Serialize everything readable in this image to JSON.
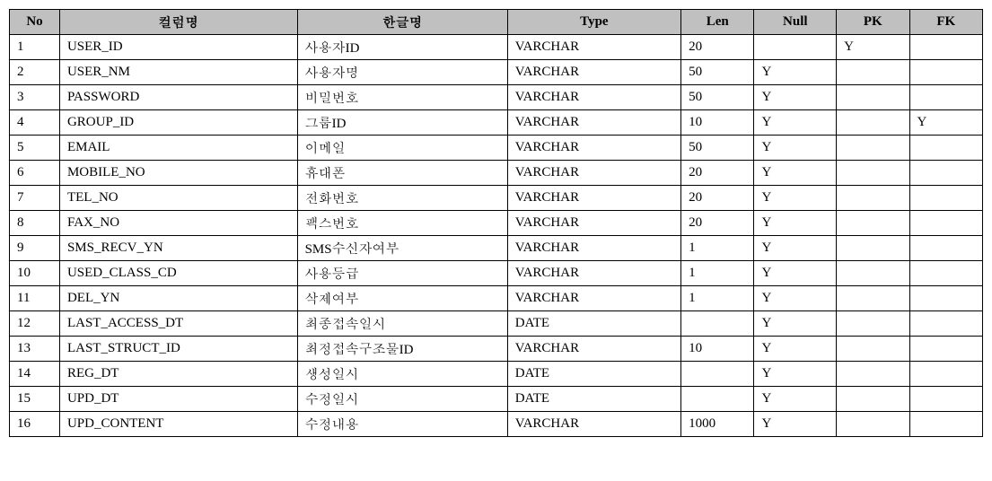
{
  "table": {
    "columns": [
      {
        "key": "no",
        "label": "No",
        "class": "col-no"
      },
      {
        "key": "name",
        "label": "컬럼명",
        "class": "col-name"
      },
      {
        "key": "korean",
        "label": "한글명",
        "class": "col-korean"
      },
      {
        "key": "type",
        "label": "Type",
        "class": "col-type"
      },
      {
        "key": "len",
        "label": "Len",
        "class": "col-len"
      },
      {
        "key": "null",
        "label": "Null",
        "class": "col-null"
      },
      {
        "key": "pk",
        "label": "PK",
        "class": "col-pk"
      },
      {
        "key": "fk",
        "label": "FK",
        "class": "col-fk"
      }
    ],
    "rows": [
      {
        "no": "1",
        "name": "USER_ID",
        "korean": "사용자ID",
        "type": "VARCHAR",
        "len": "20",
        "null": "",
        "pk": "Y",
        "fk": ""
      },
      {
        "no": "2",
        "name": "USER_NM",
        "korean": "사용자명",
        "type": "VARCHAR",
        "len": "50",
        "null": "Y",
        "pk": "",
        "fk": ""
      },
      {
        "no": "3",
        "name": "PASSWORD",
        "korean": "비밀번호",
        "type": "VARCHAR",
        "len": "50",
        "null": "Y",
        "pk": "",
        "fk": ""
      },
      {
        "no": "4",
        "name": "GROUP_ID",
        "korean": "그룹ID",
        "type": "VARCHAR",
        "len": "10",
        "null": "Y",
        "pk": "",
        "fk": "Y"
      },
      {
        "no": "5",
        "name": "EMAIL",
        "korean": "이메일",
        "type": "VARCHAR",
        "len": "50",
        "null": "Y",
        "pk": "",
        "fk": ""
      },
      {
        "no": "6",
        "name": "MOBILE_NO",
        "korean": "휴대폰",
        "type": "VARCHAR",
        "len": "20",
        "null": "Y",
        "pk": "",
        "fk": ""
      },
      {
        "no": "7",
        "name": "TEL_NO",
        "korean": "전화번호",
        "type": "VARCHAR",
        "len": "20",
        "null": "Y",
        "pk": "",
        "fk": ""
      },
      {
        "no": "8",
        "name": "FAX_NO",
        "korean": "팩스번호",
        "type": "VARCHAR",
        "len": "20",
        "null": "Y",
        "pk": "",
        "fk": ""
      },
      {
        "no": "9",
        "name": "SMS_RECV_YN",
        "korean": "SMS수신자여부",
        "type": "VARCHAR",
        "len": "1",
        "null": "Y",
        "pk": "",
        "fk": ""
      },
      {
        "no": "10",
        "name": "USED_CLASS_CD",
        "korean": "사용등급",
        "type": "VARCHAR",
        "len": "1",
        "null": "Y",
        "pk": "",
        "fk": ""
      },
      {
        "no": "11",
        "name": "DEL_YN",
        "korean": "삭제여부",
        "type": "VARCHAR",
        "len": "1",
        "null": "Y",
        "pk": "",
        "fk": ""
      },
      {
        "no": "12",
        "name": "LAST_ACCESS_DT",
        "korean": "최종접속일시",
        "type": "DATE",
        "len": "",
        "null": "Y",
        "pk": "",
        "fk": ""
      },
      {
        "no": "13",
        "name": "LAST_STRUCT_ID",
        "korean": "최정접속구조물ID",
        "type": "VARCHAR",
        "len": "10",
        "null": "Y",
        "pk": "",
        "fk": ""
      },
      {
        "no": "14",
        "name": "REG_DT",
        "korean": "생성일시",
        "type": "DATE",
        "len": "",
        "null": "Y",
        "pk": "",
        "fk": ""
      },
      {
        "no": "15",
        "name": "UPD_DT",
        "korean": "수정일시",
        "type": "DATE",
        "len": "",
        "null": "Y",
        "pk": "",
        "fk": ""
      },
      {
        "no": "16",
        "name": "UPD_CONTENT",
        "korean": "수정내용",
        "type": "VARCHAR",
        "len": "1000",
        "null": "Y",
        "pk": "",
        "fk": ""
      }
    ],
    "header_bg": "#c0c0c0",
    "border_color": "#000000",
    "font_family": "Times New Roman, Batang, serif",
    "font_size": 15
  }
}
